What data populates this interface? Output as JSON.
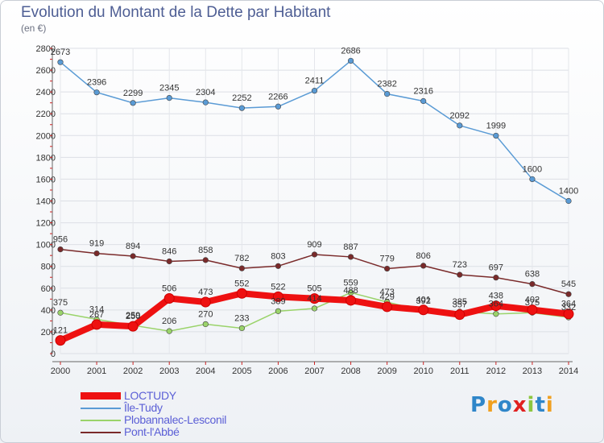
{
  "title": "Evolution du Montant de la Dette par Habitant",
  "unit": "(en €)",
  "brand": {
    "name": "Proxiti",
    "letters": [
      {
        "ch": "P",
        "color": "#2f86c9"
      },
      {
        "ch": "r",
        "color": "#f0a020"
      },
      {
        "ch": "o",
        "color": "#2f86c9"
      },
      {
        "ch": "x",
        "color": "#e02020"
      },
      {
        "ch": "i",
        "color": "#8cc63f"
      },
      {
        "ch": "t",
        "color": "#2f86c9"
      },
      {
        "ch": "i",
        "color": "#f0a020"
      }
    ]
  },
  "chart_data": {
    "type": "line",
    "title": "Evolution du Montant de la Dette par Habitant",
    "ylabel": "(en €)",
    "xlabel": "",
    "ylim": [
      0,
      2800
    ],
    "yticks": [
      0,
      200,
      400,
      600,
      800,
      1000,
      1200,
      1400,
      1600,
      1800,
      2000,
      2200,
      2400,
      2600,
      2800
    ],
    "categories": [
      "2000",
      "2001",
      "2002",
      "2003",
      "2004",
      "2005",
      "2006",
      "2007",
      "2008",
      "2009",
      "2010",
      "2011",
      "2012",
      "2013",
      "2014"
    ],
    "series": [
      {
        "name": "Île-Tudy",
        "color": "#5a9bd5",
        "values": [
          2673,
          2396,
          2299,
          2345,
          2304,
          2252,
          2266,
          2411,
          2686,
          2382,
          2316,
          2092,
          1999,
          1600,
          1400
        ],
        "labels": [
          "2673",
          "2396",
          "2299",
          "2345",
          "2304",
          "2252",
          "2266",
          "2411",
          "2686",
          "2382",
          "2316",
          "2092",
          "1999",
          "1600",
          "1400"
        ]
      },
      {
        "name": "Pont-l'Abbé",
        "color": "#7a2a2a",
        "values": [
          956,
          919,
          894,
          846,
          858,
          782,
          803,
          909,
          887,
          779,
          806,
          723,
          697,
          638,
          545
        ],
        "labels": [
          "956",
          "919",
          "894",
          "846",
          "858",
          "782",
          "803",
          "909",
          "887",
          "779",
          "806",
          "723",
          "697",
          "638",
          "545"
        ]
      },
      {
        "name": "Plobannalec-Lesconil",
        "color": "#9ad36a",
        "values": [
          375,
          314,
          259,
          206,
          270,
          233,
          389,
          414,
          559,
          473,
          392,
          385,
          364,
          375,
          332
        ],
        "labels": [
          "375",
          "314",
          "259",
          "206",
          "270",
          "233",
          "389",
          "414",
          "559",
          "473",
          "392",
          "385",
          "364",
          "375",
          "332"
        ]
      },
      {
        "name": "LOCTUDY",
        "color": "#ee1111",
        "values": [
          121,
          267,
          250,
          506,
          473,
          552,
          522,
          505,
          488,
          429,
          401,
          357,
          438,
          402,
          364
        ],
        "labels": [
          "121",
          "267",
          "250",
          "506",
          "473",
          "552",
          "522",
          "505",
          "488",
          "429",
          "401",
          "357",
          "438",
          "402",
          "364"
        ]
      }
    ],
    "legend": [
      "LOCTUDY",
      "Île-Tudy",
      "Plobannalec-Lesconil",
      "Pont-l'Abbé"
    ]
  }
}
